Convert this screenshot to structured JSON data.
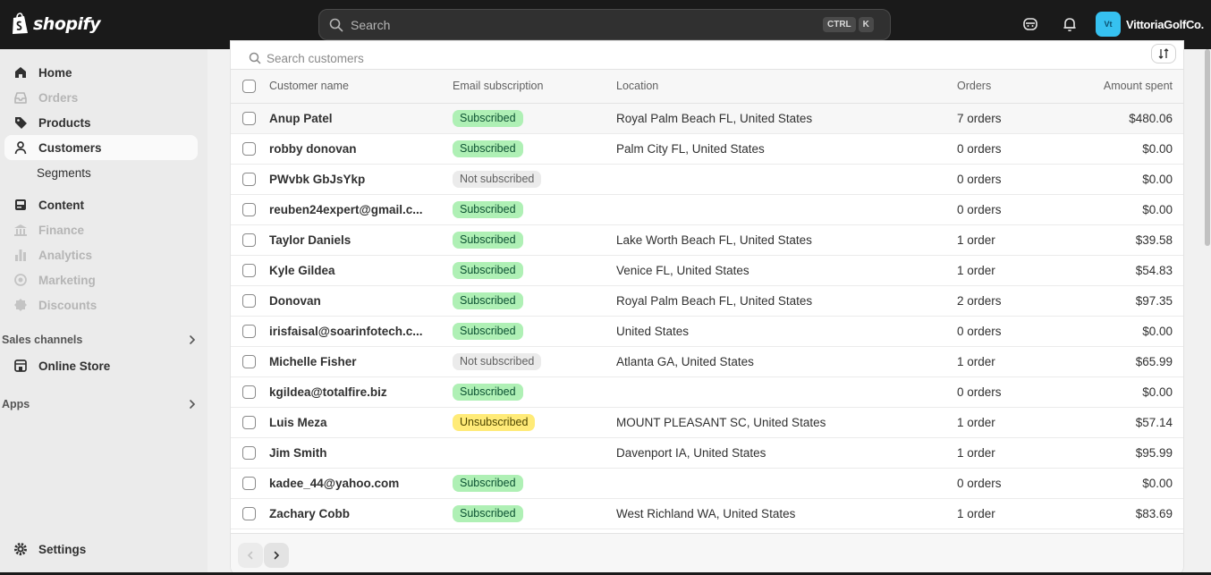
{
  "brand": {
    "logo_text": "shopify"
  },
  "search": {
    "placeholder": "Search",
    "shortcut_keys": [
      "CTRL",
      "K"
    ]
  },
  "store": {
    "initials": "Vt",
    "name": "VittoriaGolfCo."
  },
  "sidebar": {
    "items": [
      {
        "label": "Home",
        "icon": "home-icon",
        "state": "normal"
      },
      {
        "label": "Orders",
        "icon": "inbox-icon",
        "state": "disabled"
      },
      {
        "label": "Products",
        "icon": "tag-icon",
        "state": "normal"
      },
      {
        "label": "Customers",
        "icon": "person-icon",
        "state": "active"
      },
      {
        "label": "Segments",
        "icon": "",
        "state": "sub"
      },
      {
        "label": "Content",
        "icon": "content-icon",
        "state": "normal"
      },
      {
        "label": "Finance",
        "icon": "bank-icon",
        "state": "disabled"
      },
      {
        "label": "Analytics",
        "icon": "chart-icon",
        "state": "disabled"
      },
      {
        "label": "Marketing",
        "icon": "target-icon",
        "state": "disabled"
      },
      {
        "label": "Discounts",
        "icon": "discount-icon",
        "state": "disabled"
      }
    ],
    "sales_channels_label": "Sales channels",
    "online_store_label": "Online Store",
    "apps_label": "Apps",
    "settings_label": "Settings"
  },
  "customers": {
    "search_placeholder": "Search customers",
    "columns": [
      "Customer name",
      "Email subscription",
      "Location",
      "Orders",
      "Amount spent"
    ],
    "rows": [
      {
        "name": "Anup Patel",
        "email_status": "Subscribed",
        "email_kind": "subscribed",
        "location": "Royal Palm Beach FL, United States",
        "orders": "7 orders",
        "amount": "$480.06"
      },
      {
        "name": "robby donovan",
        "email_status": "Subscribed",
        "email_kind": "subscribed",
        "location": "Palm City FL, United States",
        "orders": "0 orders",
        "amount": "$0.00"
      },
      {
        "name": "PWvbk GbJsYkp",
        "email_status": "Not subscribed",
        "email_kind": "not",
        "location": "",
        "orders": "0 orders",
        "amount": "$0.00"
      },
      {
        "name": "reuben24expert@gmail.c...",
        "email_status": "Subscribed",
        "email_kind": "subscribed",
        "location": "",
        "orders": "0 orders",
        "amount": "$0.00"
      },
      {
        "name": "Taylor Daniels",
        "email_status": "Subscribed",
        "email_kind": "subscribed",
        "location": "Lake Worth Beach FL, United States",
        "orders": "1 order",
        "amount": "$39.58"
      },
      {
        "name": "Kyle Gildea",
        "email_status": "Subscribed",
        "email_kind": "subscribed",
        "location": "Venice FL, United States",
        "orders": "1 order",
        "amount": "$54.83"
      },
      {
        "name": "Donovan",
        "email_status": "Subscribed",
        "email_kind": "subscribed",
        "location": "Royal Palm Beach FL, United States",
        "orders": "2 orders",
        "amount": "$97.35"
      },
      {
        "name": "irisfaisal@soarinfotech.c...",
        "email_status": "Subscribed",
        "email_kind": "subscribed",
        "location": "United States",
        "orders": "0 orders",
        "amount": "$0.00"
      },
      {
        "name": "Michelle Fisher",
        "email_status": "Not subscribed",
        "email_kind": "not",
        "location": "Atlanta GA, United States",
        "orders": "1 order",
        "amount": "$65.99"
      },
      {
        "name": "kgildea@totalfire.biz",
        "email_status": "Subscribed",
        "email_kind": "subscribed",
        "location": "",
        "orders": "0 orders",
        "amount": "$0.00"
      },
      {
        "name": "Luis Meza",
        "email_status": "Unsubscribed",
        "email_kind": "unsub",
        "location": "MOUNT PLEASANT SC, United States",
        "orders": "1 order",
        "amount": "$57.14"
      },
      {
        "name": "Jim Smith",
        "email_status": "",
        "email_kind": "",
        "location": "Davenport IA, United States",
        "orders": "1 order",
        "amount": "$95.99"
      },
      {
        "name": "kadee_44@yahoo.com",
        "email_status": "Subscribed",
        "email_kind": "subscribed",
        "location": "",
        "orders": "0 orders",
        "amount": "$0.00"
      },
      {
        "name": "Zachary Cobb",
        "email_status": "Subscribed",
        "email_kind": "subscribed",
        "location": "West Richland WA, United States",
        "orders": "1 order",
        "amount": "$83.69"
      }
    ]
  },
  "colors": {
    "topbar": "#1a1a1a",
    "subscribed_bg": "#aff0b5",
    "unsubscribed_bg": "#ffeb78",
    "not_subscribed_bg": "#ebebeb",
    "avatar": "#36c1f0"
  }
}
